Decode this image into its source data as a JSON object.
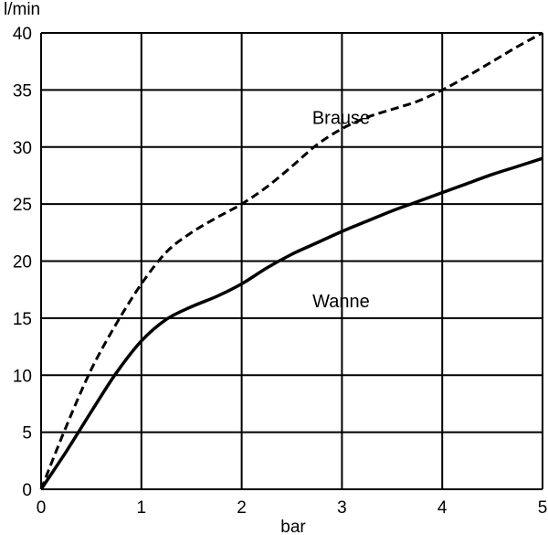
{
  "chart_data": {
    "type": "line",
    "title": "",
    "xlabel": "bar",
    "ylabel": "l/min",
    "xlim": [
      0,
      5
    ],
    "ylim": [
      0,
      40
    ],
    "x_ticks": [
      "0",
      "1",
      "2",
      "3",
      "4",
      "5"
    ],
    "y_ticks": [
      "0",
      "5",
      "10",
      "15",
      "20",
      "25",
      "30",
      "35",
      "40"
    ],
    "grid": true,
    "legend": "none",
    "series": [
      {
        "name": "Brause",
        "style": "dashed",
        "color": "#000000",
        "x": [
          0,
          0.25,
          0.5,
          0.75,
          1.0,
          1.25,
          1.5,
          1.75,
          2.0,
          2.25,
          2.5,
          2.75,
          3.0,
          3.25,
          3.5,
          3.75,
          4.0,
          4.25,
          4.5,
          4.75,
          5.0
        ],
        "y": [
          0,
          5.5,
          10.5,
          14.5,
          18,
          20.8,
          22.5,
          23.8,
          25,
          26.5,
          28.3,
          30.2,
          31.6,
          32.6,
          33.3,
          34.0,
          35,
          36.2,
          37.5,
          38.8,
          40
        ]
      },
      {
        "name": "Wanne",
        "style": "solid",
        "color": "#000000",
        "x": [
          0,
          0.25,
          0.5,
          0.75,
          1.0,
          1.25,
          1.5,
          1.75,
          2.0,
          2.25,
          2.5,
          2.75,
          3.0,
          3.25,
          3.5,
          3.75,
          4.0,
          4.25,
          4.5,
          4.75,
          5.0
        ],
        "y": [
          0,
          3.3,
          6.8,
          10.2,
          13,
          14.9,
          16.0,
          16.9,
          18,
          19.4,
          20.6,
          21.6,
          22.6,
          23.5,
          24.4,
          25.2,
          26,
          26.8,
          27.6,
          28.3,
          29
        ]
      }
    ],
    "annotations": [
      {
        "text": "Brause",
        "x": 2.5,
        "y": 32.6
      },
      {
        "text": "Wanne",
        "x": 2.5,
        "y": 16.5
      }
    ]
  }
}
